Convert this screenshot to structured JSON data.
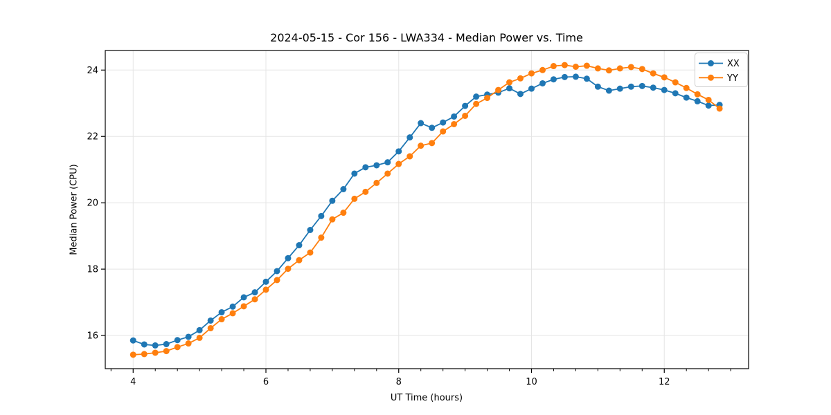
{
  "chart_data": {
    "type": "line",
    "title": "2024-05-15 - Cor 156 - LWA334 - Median Power vs. Time",
    "xlabel": "UT Time (hours)",
    "ylabel": "Median Power (CPU)",
    "xlim": [
      3.58,
      13.27
    ],
    "ylim": [
      15.0,
      24.59
    ],
    "xticks": [
      4,
      6,
      8,
      10,
      12
    ],
    "yticks": [
      16,
      18,
      20,
      22,
      24
    ],
    "x_minor_tick_step": 0.3333,
    "grid": "major-only, light gray, both axes",
    "legend_position": "upper right",
    "background_color": "#ffffff",
    "grid_color": "#e5e5e5",
    "spine_color": "#000000",
    "x": [
      4.0,
      4.167,
      4.333,
      4.5,
      4.667,
      4.833,
      5.0,
      5.167,
      5.333,
      5.5,
      5.667,
      5.833,
      6.0,
      6.167,
      6.333,
      6.5,
      6.667,
      6.833,
      7.0,
      7.167,
      7.333,
      7.5,
      7.667,
      7.833,
      8.0,
      8.167,
      8.333,
      8.5,
      8.667,
      8.833,
      9.0,
      9.167,
      9.333,
      9.5,
      9.667,
      9.833,
      10.0,
      10.167,
      10.333,
      10.5,
      10.667,
      10.833,
      11.0,
      11.167,
      11.333,
      11.5,
      11.667,
      11.833,
      12.0,
      12.167,
      12.333,
      12.5,
      12.667,
      12.833
    ],
    "series": [
      {
        "name": "XX",
        "color": "#1f77b4",
        "marker": "circle",
        "values": [
          15.85,
          15.73,
          15.7,
          15.74,
          15.86,
          15.96,
          16.16,
          16.45,
          16.7,
          16.87,
          17.15,
          17.3,
          17.62,
          17.94,
          18.33,
          18.72,
          19.18,
          19.6,
          20.06,
          20.41,
          20.88,
          21.07,
          21.13,
          21.22,
          21.55,
          21.97,
          22.4,
          22.26,
          22.42,
          22.6,
          22.92,
          23.2,
          23.26,
          23.32,
          23.45,
          23.28,
          23.44,
          23.6,
          23.72,
          23.79,
          23.8,
          23.74,
          23.5,
          23.38,
          23.44,
          23.5,
          23.52,
          23.47,
          23.4,
          23.3,
          23.17,
          23.06,
          22.93,
          22.95
        ]
      },
      {
        "name": "YY",
        "color": "#ff7f0e",
        "marker": "circle",
        "values": [
          15.42,
          15.44,
          15.48,
          15.53,
          15.65,
          15.76,
          15.93,
          16.22,
          16.49,
          16.67,
          16.88,
          17.09,
          17.38,
          17.67,
          18.01,
          18.27,
          18.5,
          18.95,
          19.5,
          19.7,
          20.12,
          20.33,
          20.6,
          20.88,
          21.17,
          21.4,
          21.72,
          21.8,
          22.15,
          22.37,
          22.62,
          22.98,
          23.16,
          23.4,
          23.63,
          23.75,
          23.9,
          24.0,
          24.12,
          24.15,
          24.1,
          24.13,
          24.05,
          23.99,
          24.05,
          24.09,
          24.03,
          23.9,
          23.78,
          23.63,
          23.46,
          23.27,
          23.1,
          22.84
        ]
      }
    ]
  }
}
